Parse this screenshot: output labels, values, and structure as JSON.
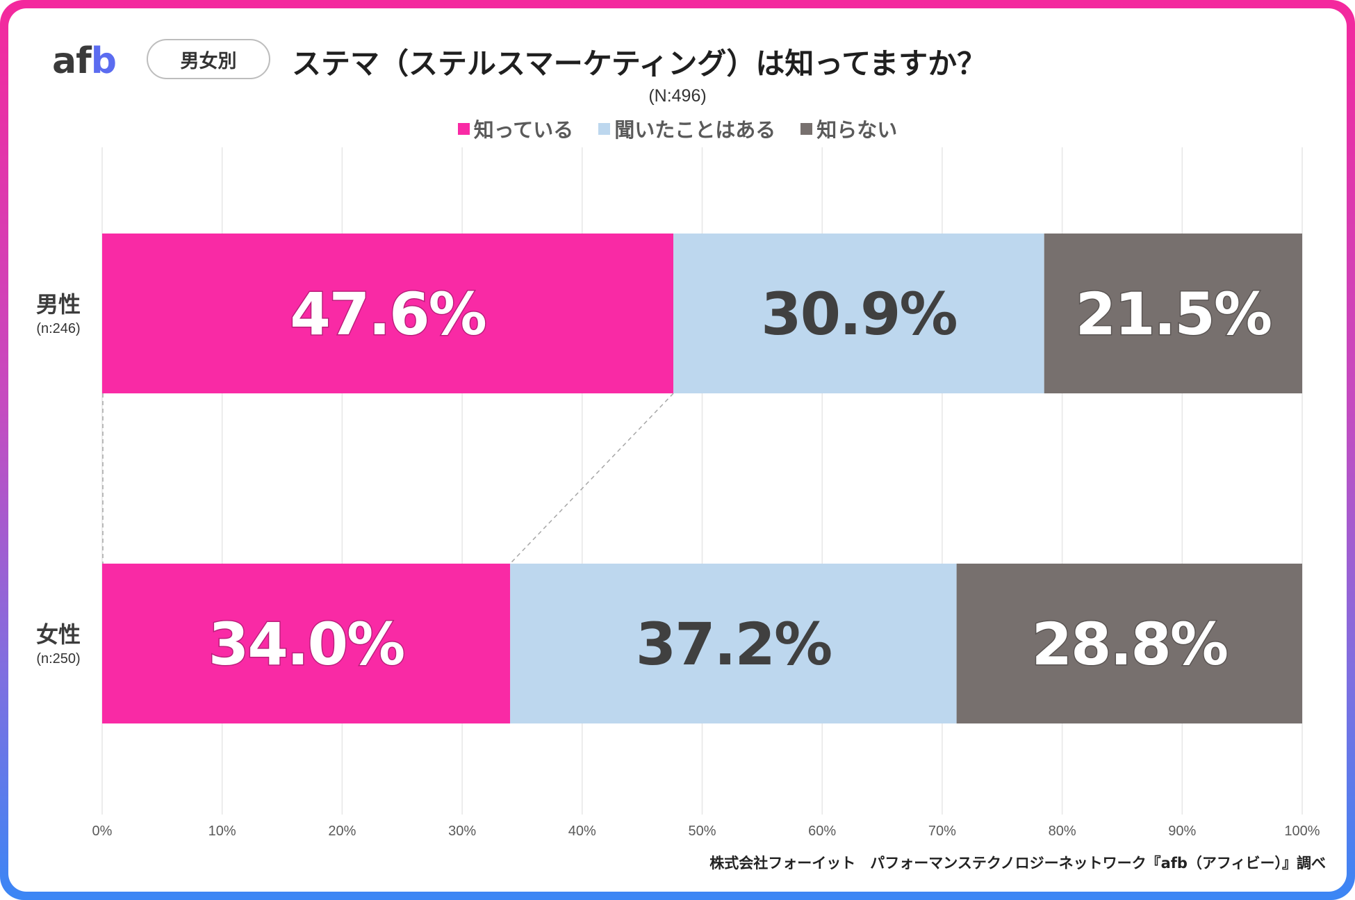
{
  "brand": {
    "logo_a": "a",
    "logo_f": "f",
    "logo_b": "b",
    "tag": "男女別"
  },
  "title": "ステマ（ステルスマーケティング）は知ってますか？",
  "total_n": "(N:496)",
  "footer": "株式会社フォーイット　パフォーマンステクノロジーネットワーク『afb（アフィビー）』調べ",
  "colors": {
    "known": "#f92aa5",
    "heard": "#bdd7ee",
    "unknown": "#77706e",
    "gridline": "#e6e6e6"
  },
  "chart_data": {
    "type": "bar",
    "orientation": "horizontal-stacked-100",
    "title": "ステマ（ステルスマーケティング）は知ってますか？",
    "categories": [
      "男性",
      "女性"
    ],
    "category_n": [
      "(n:246)",
      "(n:250)"
    ],
    "series": [
      {
        "name": "知っている",
        "values": [
          47.6,
          34.0
        ],
        "labels": [
          "47.6%",
          "34.0%"
        ]
      },
      {
        "name": "聞いたことはある",
        "values": [
          30.9,
          37.2
        ],
        "labels": [
          "30.9%",
          "37.2%"
        ]
      },
      {
        "name": "知らない",
        "values": [
          21.5,
          28.8
        ],
        "labels": [
          "21.5%",
          "28.8%"
        ]
      }
    ],
    "xlim": [
      0,
      100
    ],
    "xticks": [
      "0%",
      "10%",
      "20%",
      "30%",
      "40%",
      "50%",
      "60%",
      "70%",
      "80%",
      "90%",
      "100%"
    ],
    "legend": "top-center",
    "grid": true
  }
}
